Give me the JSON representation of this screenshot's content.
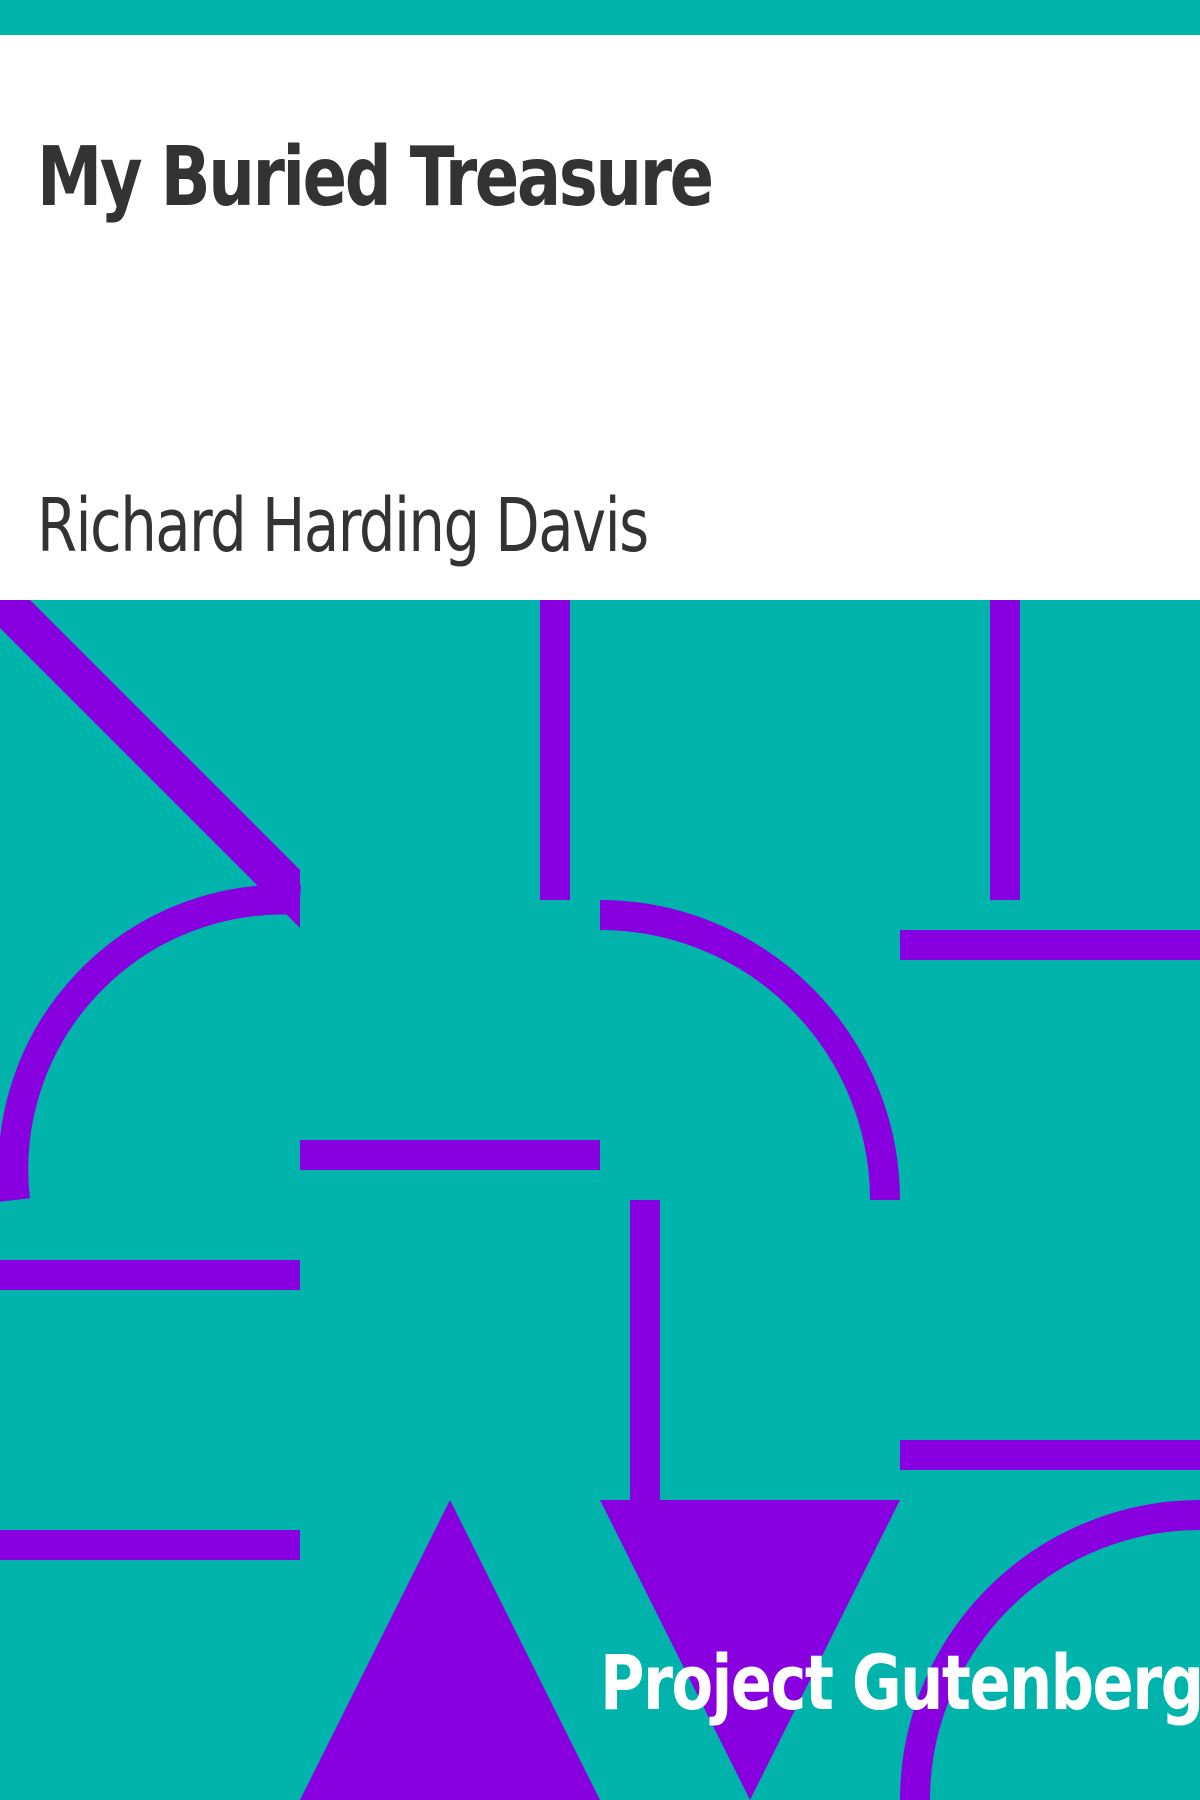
{
  "book": {
    "title": "My Buried Treasure",
    "author": "Richard Harding Davis",
    "publisher": "Project Gutenberg"
  },
  "colors": {
    "background": "#00b4ac",
    "title_panel": "#ffffff",
    "text_dark": "#333333",
    "pattern_accent": "#8800e0",
    "publisher_text": "#ffffff"
  }
}
